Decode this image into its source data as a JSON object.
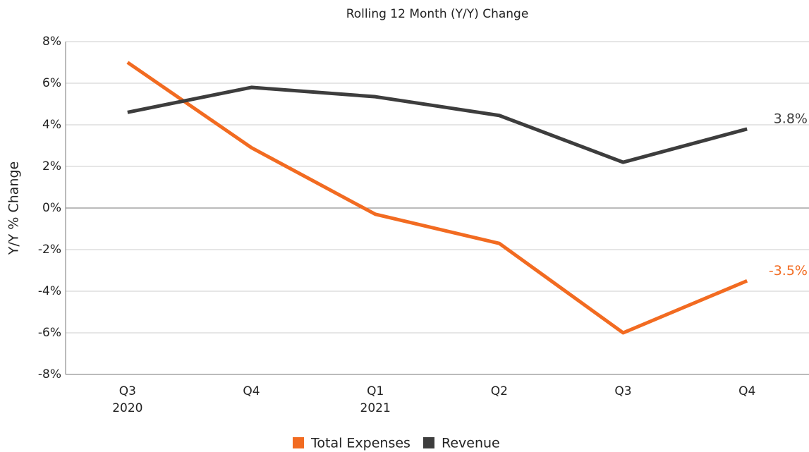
{
  "chart_data": {
    "type": "line",
    "title": "Rolling 12 Month (Y/Y) Change",
    "y_label": "Y/Y % Change",
    "categories": [
      "Q3",
      "Q4",
      "Q1",
      "Q2",
      "Q3",
      "Q4"
    ],
    "category_years": [
      "2020",
      null,
      "2021",
      null,
      null,
      null
    ],
    "series": [
      {
        "name": "Total Expenses",
        "color": "#f26b21",
        "values": [
          7.0,
          2.9,
          -0.3,
          -1.7,
          -6.0,
          -3.5
        ],
        "value_labels": [
          null,
          null,
          null,
          null,
          null,
          "-3.5%"
        ]
      },
      {
        "name": "Revenue",
        "color": "#3d3d3d",
        "values": [
          4.6,
          5.8,
          5.35,
          4.45,
          2.2,
          3.8
        ],
        "value_labels": [
          null,
          null,
          null,
          null,
          null,
          "3.8%"
        ]
      }
    ],
    "ylim": [
      -8,
      8
    ],
    "yticks": [
      {
        "value": -8,
        "label": "-8%"
      },
      {
        "value": -6,
        "label": "-6%"
      },
      {
        "value": -4,
        "label": "-4%"
      },
      {
        "value": -2,
        "label": "-2%"
      },
      {
        "value": 0,
        "label": "0%"
      },
      {
        "value": 2,
        "label": "2%"
      },
      {
        "value": 4,
        "label": "4%"
      },
      {
        "value": 6,
        "label": "6%"
      },
      {
        "value": 8,
        "label": "8%"
      }
    ],
    "grid": true,
    "legend": "bottom"
  }
}
